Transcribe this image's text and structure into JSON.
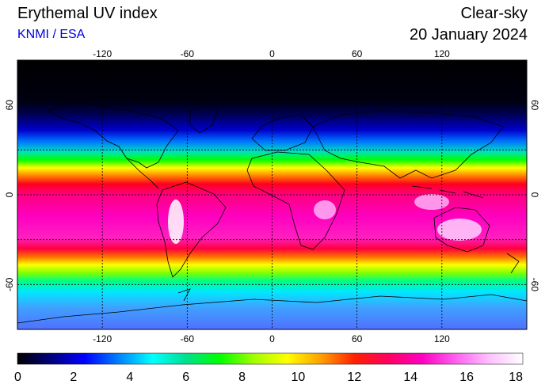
{
  "header": {
    "title": "Erythemal UV index",
    "source": "KNMI / ESA",
    "mode": "Clear-sky",
    "date": "20 January 2024"
  },
  "map": {
    "lon_ticks": [
      -120,
      -60,
      0,
      60,
      120
    ],
    "lat_ticks": [
      60,
      0,
      -60
    ],
    "lon_range": [
      -180,
      180
    ],
    "lat_range": [
      -90,
      90
    ],
    "grid": "dotted",
    "colorbar": {
      "ticks": [
        0,
        2,
        4,
        6,
        8,
        10,
        12,
        14,
        16,
        18
      ],
      "colors": [
        "#000000",
        "#000080",
        "#0000ff",
        "#0080ff",
        "#00ffff",
        "#00e090",
        "#00ff00",
        "#a0ff00",
        "#ffff00",
        "#ffa000",
        "#ff2000",
        "#ff0060",
        "#ff00c0",
        "#ff60f0",
        "#ffc0ff",
        "#ffffff"
      ]
    }
  }
}
